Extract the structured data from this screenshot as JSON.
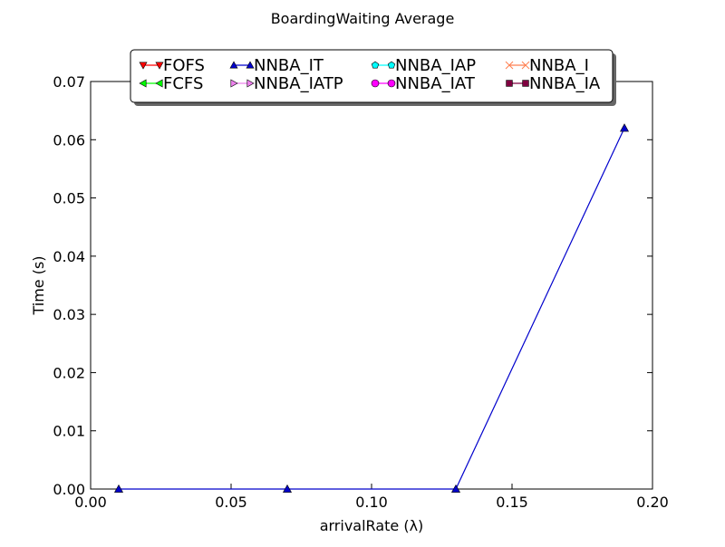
{
  "chart_data": {
    "type": "line",
    "title": "BoardingWaiting Average",
    "xlabel": "arrivalRate (λ)",
    "ylabel": "Time (s)",
    "xlim": [
      0.0,
      0.2
    ],
    "ylim": [
      0.0,
      0.07
    ],
    "x_ticks": [
      "0.00",
      "0.05",
      "0.10",
      "0.15",
      "0.20"
    ],
    "y_ticks": [
      "0.00",
      "0.01",
      "0.02",
      "0.03",
      "0.04",
      "0.05",
      "0.06",
      "0.07"
    ],
    "grid": false,
    "legend_position": "top-center",
    "series": [
      {
        "name": "FOFS",
        "color": "#ff0000",
        "marker": "triangle-down",
        "x": [],
        "y": []
      },
      {
        "name": "FCFS",
        "color": "#00ff00",
        "marker": "triangle-left",
        "x": [],
        "y": []
      },
      {
        "name": "NNBA_IT",
        "color": "#0000cc",
        "marker": "triangle-up",
        "x": [
          0.01,
          0.07,
          0.13,
          0.19
        ],
        "y": [
          0.0,
          0.0,
          0.0,
          0.062
        ]
      },
      {
        "name": "NNBA_IATP",
        "color": "#ee82ee",
        "marker": "triangle-right",
        "x": [],
        "y": []
      },
      {
        "name": "NNBA_IAP",
        "color": "#00ffff",
        "marker": "pentagon",
        "x": [],
        "y": []
      },
      {
        "name": "NNBA_IAT",
        "color": "#ff00ff",
        "marker": "circle",
        "x": [],
        "y": []
      },
      {
        "name": "NNBA_I",
        "color": "#ff7f50",
        "marker": "x",
        "x": [],
        "y": []
      },
      {
        "name": "NNBA_IA",
        "color": "#800040",
        "marker": "square",
        "x": [],
        "y": []
      }
    ]
  }
}
